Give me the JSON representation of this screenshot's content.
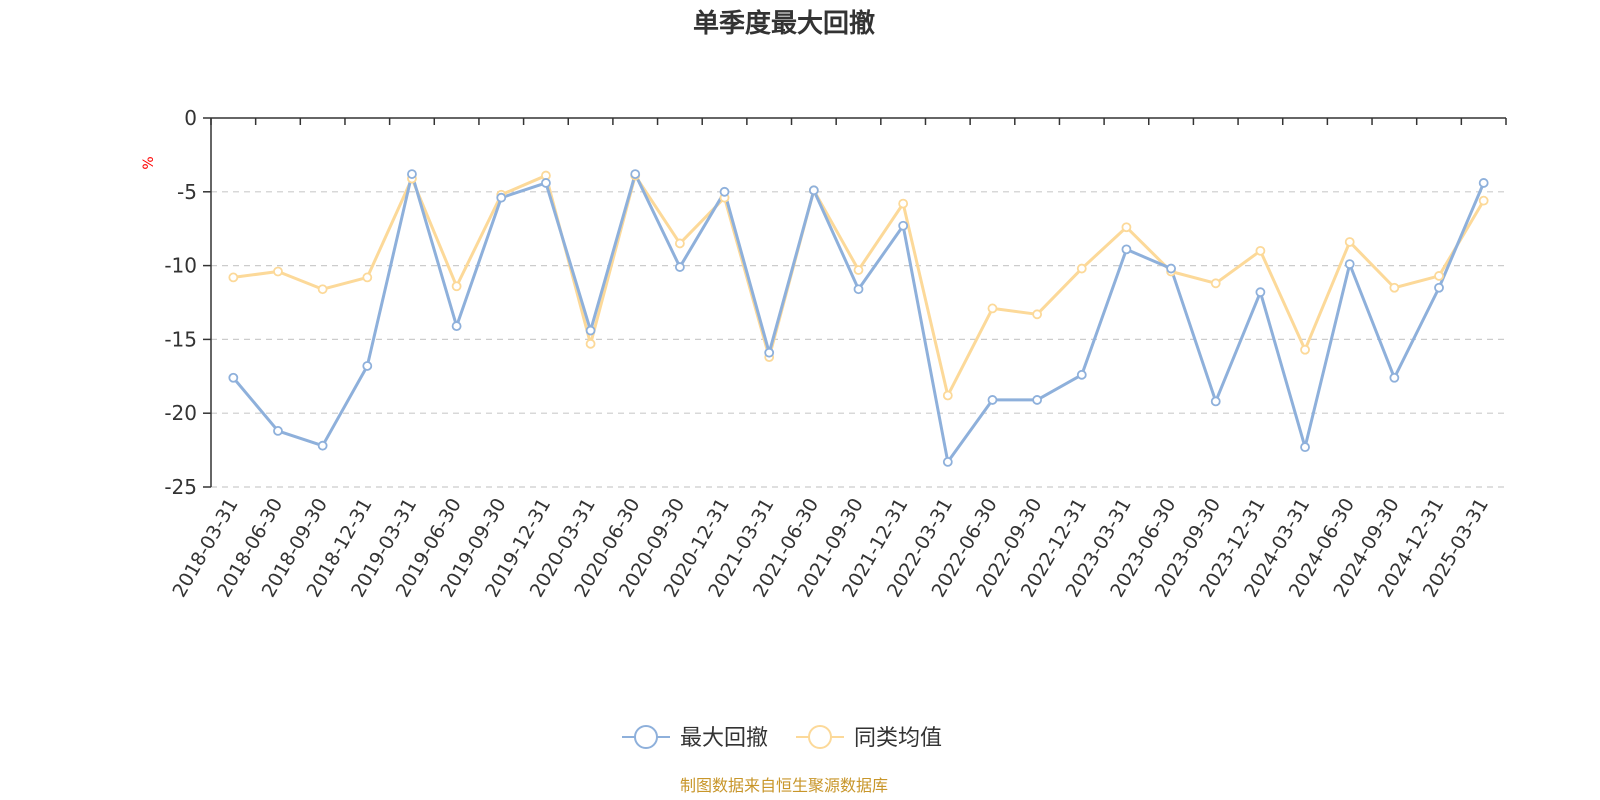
{
  "chart_data": {
    "type": "line",
    "title": "单季度最大回撤",
    "unit_label": "%",
    "ylim": [
      -25,
      0
    ],
    "yticks": [
      0,
      -5,
      -10,
      -15,
      -20,
      -25
    ],
    "grid": true,
    "legend_position": "bottom-center",
    "categories": [
      "2018-03-31",
      "2018-06-30",
      "2018-09-30",
      "2018-12-31",
      "2019-03-31",
      "2019-06-30",
      "2019-09-30",
      "2019-12-31",
      "2020-03-31",
      "2020-06-30",
      "2020-09-30",
      "2020-12-31",
      "2021-03-31",
      "2021-06-30",
      "2021-09-30",
      "2021-12-31",
      "2022-03-31",
      "2022-06-30",
      "2022-09-30",
      "2022-12-31",
      "2023-03-31",
      "2023-06-30",
      "2023-09-30",
      "2023-12-31",
      "2024-03-31",
      "2024-06-30",
      "2024-09-30",
      "2024-12-31",
      "2025-03-31"
    ],
    "series": [
      {
        "name": "最大回撤",
        "color": "#8eb0db",
        "values": [
          -17.6,
          -21.2,
          -22.2,
          -16.8,
          -3.8,
          -14.1,
          -5.4,
          -4.4,
          -14.4,
          -3.8,
          -10.1,
          -5.0,
          -15.9,
          -4.9,
          -11.6,
          -7.3,
          -23.3,
          -19.1,
          -19.1,
          -17.4,
          -8.9,
          -10.2,
          -19.2,
          -11.8,
          -22.3,
          -9.9,
          -17.6,
          -11.5,
          -4.4
        ]
      },
      {
        "name": "同类均值",
        "color": "#fcd999",
        "values": [
          -10.8,
          -10.4,
          -11.6,
          -10.8,
          -4.1,
          -11.4,
          -5.2,
          -3.9,
          -15.3,
          -3.9,
          -8.5,
          -5.4,
          -16.2,
          -4.9,
          -10.3,
          -5.8,
          -18.8,
          -12.9,
          -13.3,
          -10.2,
          -7.4,
          -10.4,
          -11.2,
          -9.0,
          -15.7,
          -8.4,
          -11.5,
          -10.7,
          -5.6
        ]
      }
    ]
  },
  "source_note": "制图数据来自恒生聚源数据库"
}
